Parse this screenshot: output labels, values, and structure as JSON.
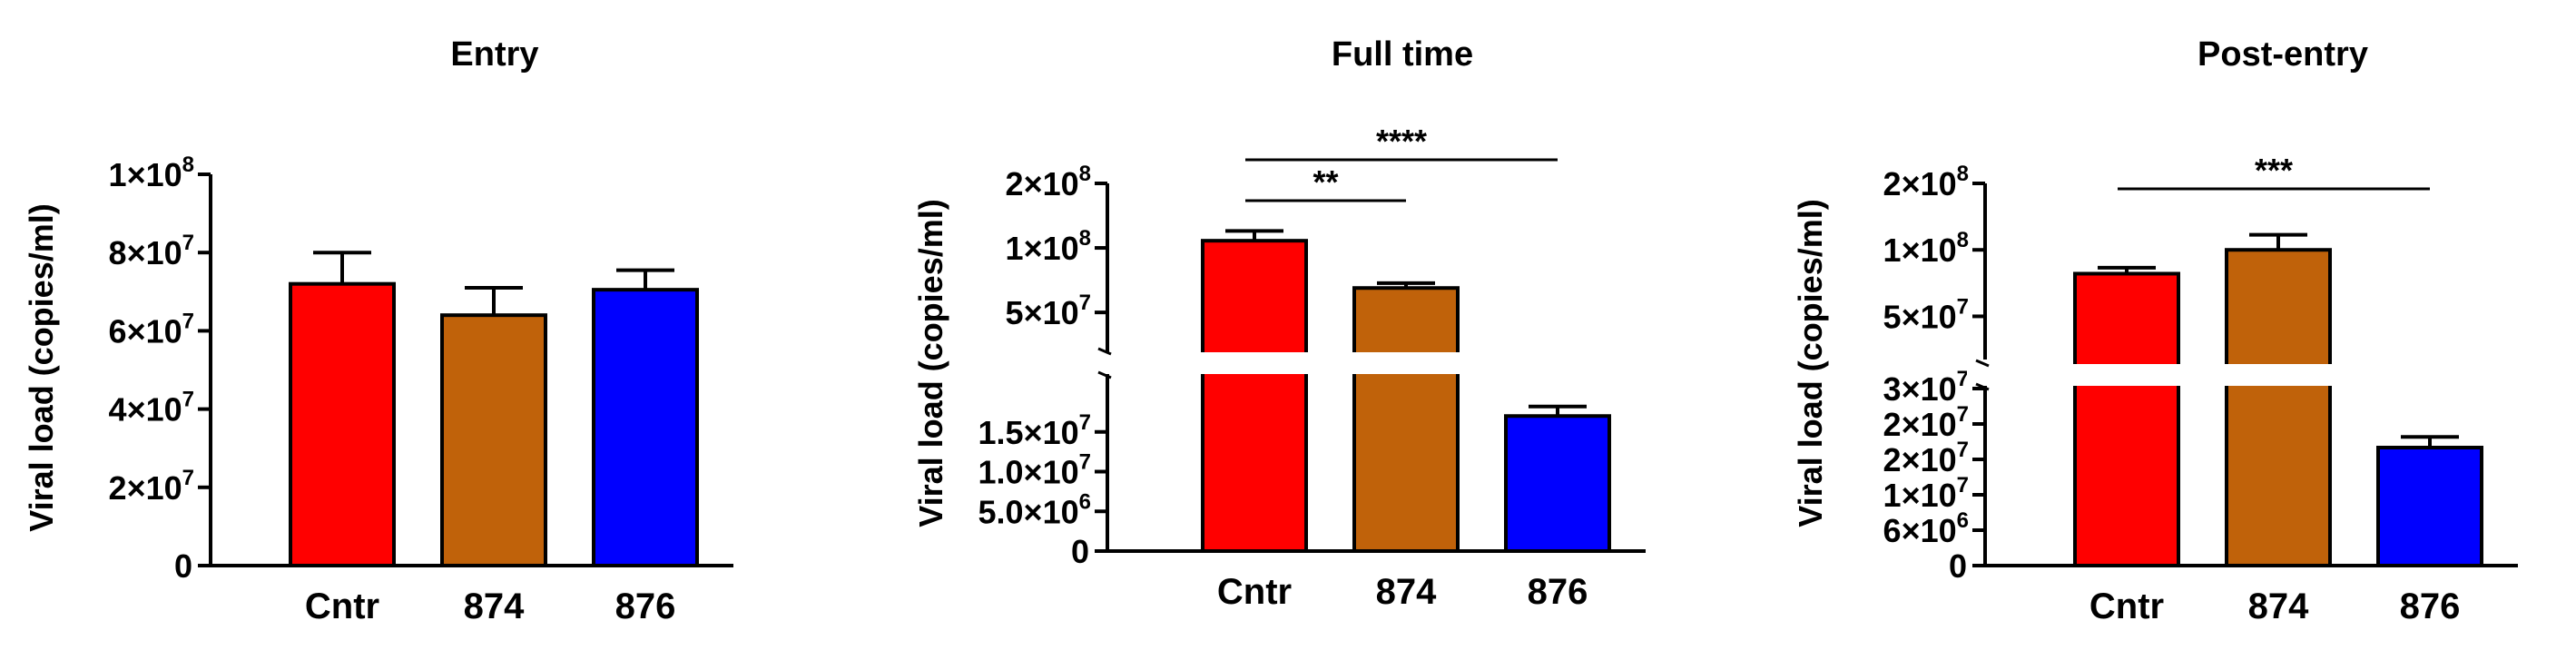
{
  "chart_data": [
    {
      "type": "bar",
      "title": "Entry",
      "ylabel": "Viral load (copies/ml)",
      "categories": [
        "Cntr",
        "874",
        "876"
      ],
      "values": [
        72000000,
        64000000,
        70500000
      ],
      "errors": [
        8000000,
        7000000,
        5000000
      ],
      "colors": [
        "#ff0000",
        "#c0620a",
        "#0000ff"
      ],
      "ylim": [
        0,
        100000000
      ],
      "yticks": [
        {
          "value": 0,
          "mant": "0",
          "exp": ""
        },
        {
          "value": 20000000,
          "mant": "2×10",
          "exp": "7"
        },
        {
          "value": 40000000,
          "mant": "4×10",
          "exp": "7"
        },
        {
          "value": 60000000,
          "mant": "6×10",
          "exp": "7"
        },
        {
          "value": 80000000,
          "mant": "8×10",
          "exp": "7"
        },
        {
          "value": 100000000,
          "mant": "1×10",
          "exp": "8"
        }
      ],
      "significance": []
    },
    {
      "type": "bar",
      "title": "Full time",
      "ylabel": "Viral load (copies/ml)",
      "categories": [
        "Cntr",
        "874",
        "876"
      ],
      "values": [
        108000000,
        65000000,
        17000000
      ],
      "errors": [
        12000000,
        3500000,
        1200000
      ],
      "colors": [
        "#ff0000",
        "#c0620a",
        "#0000ff"
      ],
      "y_axis_break": {
        "lower_range": [
          0,
          20000000
        ],
        "upper_range": [
          40000000,
          200000000
        ],
        "upper_scale": "log"
      },
      "yticks": [
        {
          "value": 0,
          "mant": "0",
          "exp": ""
        },
        {
          "value": 5000000,
          "mant": "5.0×10",
          "exp": "6"
        },
        {
          "value": 10000000,
          "mant": "1.0×10",
          "exp": "7"
        },
        {
          "value": 15000000,
          "mant": "1.5×10",
          "exp": "7"
        },
        {
          "value": 50000000,
          "mant": "5×10",
          "exp": "7"
        },
        {
          "value": 100000000,
          "mant": "1×10",
          "exp": "8"
        },
        {
          "value": 200000000,
          "mant": "2×10",
          "exp": "8"
        }
      ],
      "significance": [
        {
          "from": "Cntr",
          "to": "874",
          "label": "**"
        },
        {
          "from": "Cntr",
          "to": "876",
          "label": "****"
        }
      ]
    },
    {
      "type": "bar",
      "title": "Post-entry",
      "ylabel": "Viral load (copies/ml)",
      "categories": [
        "Cntr",
        "874",
        "876"
      ],
      "values": [
        78000000,
        100000000,
        20000000
      ],
      "errors": [
        5000000,
        17000000,
        1800000
      ],
      "colors": [
        "#ff0000",
        "#c0620a",
        "#0000ff"
      ],
      "y_axis_break": {
        "lower_range": [
          0,
          30000000
        ],
        "upper_range": [
          40000000,
          200000000
        ],
        "upper_scale": "log"
      },
      "yticks": [
        {
          "value": 0,
          "mant": "0",
          "exp": ""
        },
        {
          "value": 6000000,
          "mant": "6×10",
          "exp": "6"
        },
        {
          "value": 12000000,
          "mant": "1×10",
          "exp": "7"
        },
        {
          "value": 18000000,
          "mant": "2×10",
          "exp": "7"
        },
        {
          "value": 24000000,
          "mant": "2×10",
          "exp": "7"
        },
        {
          "value": 30000000,
          "mant": "3×10",
          "exp": "7"
        },
        {
          "value": 50000000,
          "mant": "5×10",
          "exp": "7"
        },
        {
          "value": 100000000,
          "mant": "1×10",
          "exp": "8"
        },
        {
          "value": 200000000,
          "mant": "2×10",
          "exp": "8"
        }
      ],
      "significance": [
        {
          "from": "Cntr",
          "to": "876",
          "label": "***"
        }
      ]
    }
  ]
}
